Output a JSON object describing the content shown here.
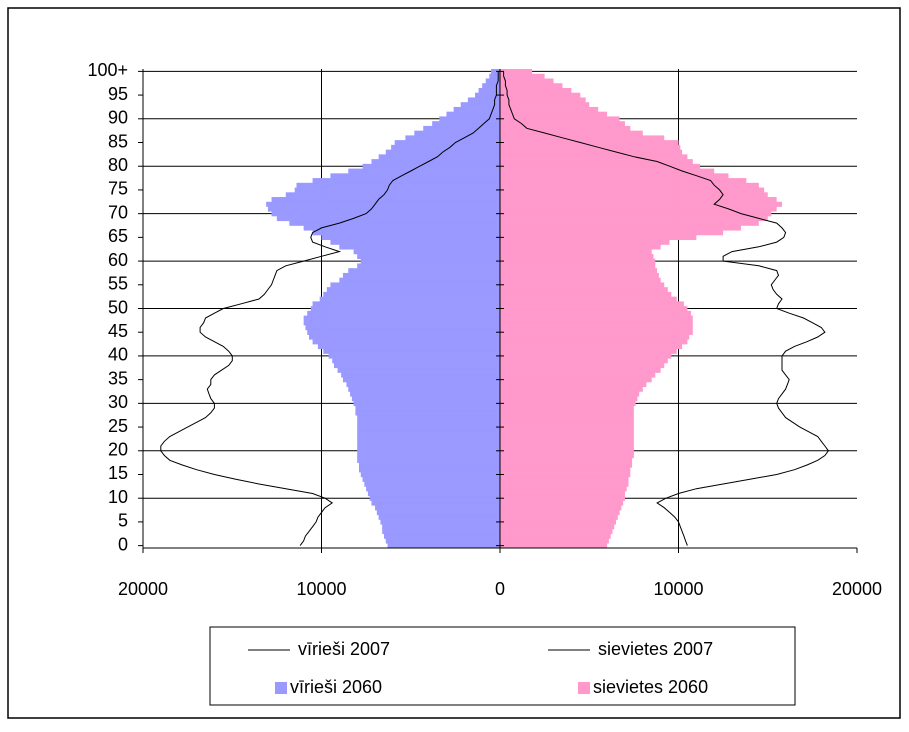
{
  "chart_data": {
    "type": "bar",
    "orientation": "horizontal",
    "categories": [
      "0",
      null,
      null,
      null,
      null,
      "5",
      null,
      null,
      null,
      null,
      "10",
      null,
      null,
      null,
      null,
      "15",
      null,
      null,
      null,
      null,
      "20",
      null,
      null,
      null,
      null,
      "25",
      null,
      null,
      null,
      null,
      "30",
      null,
      null,
      null,
      null,
      "35",
      null,
      null,
      null,
      null,
      "40",
      null,
      null,
      null,
      null,
      "45",
      null,
      null,
      null,
      null,
      "50",
      null,
      null,
      null,
      null,
      "55",
      null,
      null,
      null,
      null,
      "60",
      null,
      null,
      null,
      null,
      "65",
      null,
      null,
      null,
      null,
      "70",
      null,
      null,
      null,
      null,
      "75",
      null,
      null,
      null,
      null,
      "80",
      null,
      null,
      null,
      null,
      "85",
      null,
      null,
      null,
      null,
      "90",
      null,
      null,
      null,
      null,
      "95",
      null,
      null,
      null,
      null,
      "100+"
    ],
    "xlim": [
      -20000,
      20000
    ],
    "xticks": [
      {
        "value": -20000,
        "label": "20000"
      },
      {
        "value": -10000,
        "label": "10000"
      },
      0,
      10000,
      20000
    ],
    "grid": true,
    "series": [
      {
        "name": "vīrieši 2007",
        "type": "line",
        "color": "#000000",
        "values": [
          -11200,
          -11000,
          -10900,
          -10700,
          -10500,
          -10300,
          -10200,
          -10000,
          -9800,
          -9400,
          -9800,
          -10500,
          -12000,
          -13500,
          -14800,
          -16000,
          -17000,
          -17800,
          -18500,
          -18800,
          -19000,
          -19000,
          -18800,
          -18500,
          -18000,
          -17500,
          -17000,
          -16500,
          -16200,
          -16000,
          -16000,
          -16200,
          -16300,
          -16400,
          -16200,
          -16200,
          -16000,
          -15600,
          -15200,
          -15000,
          -15000,
          -15200,
          -15500,
          -16000,
          -16500,
          -16800,
          -16800,
          -16600,
          -16500,
          -16000,
          -15500,
          -14500,
          -13500,
          -13200,
          -13000,
          -12800,
          -12700,
          -12600,
          -12500,
          -12000,
          -11000,
          -10000,
          -9000,
          -9800,
          -10500,
          -10600,
          -10500,
          -10000,
          -9000,
          -8200,
          -7500,
          -7200,
          -7000,
          -6800,
          -6500,
          -6300,
          -6200,
          -6000,
          -5500,
          -5000,
          -4500,
          -4000,
          -3500,
          -3200,
          -2800,
          -2500,
          -2000,
          -1500,
          -1200,
          -900,
          -600,
          -500,
          -400,
          -300,
          -300,
          -200,
          -200,
          -200,
          -100,
          -100,
          -100
        ]
      },
      {
        "name": "sievietes 2007",
        "type": "line",
        "color": "#000000",
        "values": [
          10500,
          10400,
          10300,
          10200,
          10100,
          10000,
          9800,
          9500,
          9200,
          8800,
          9300,
          10000,
          11000,
          12500,
          14000,
          15500,
          16500,
          17200,
          17800,
          18200,
          18400,
          18200,
          18000,
          17800,
          17300,
          16800,
          16400,
          16000,
          15800,
          15600,
          15500,
          15600,
          15800,
          16000,
          16100,
          16200,
          16000,
          15800,
          15800,
          15800,
          15800,
          16000,
          16500,
          17200,
          17800,
          18200,
          18000,
          17500,
          17000,
          16200,
          15500,
          15600,
          15800,
          15500,
          15300,
          15200,
          15400,
          15600,
          15500,
          14500,
          12500,
          12500,
          13000,
          14500,
          15500,
          15900,
          16000,
          15800,
          15500,
          14500,
          13500,
          12800,
          12000,
          12300,
          12500,
          12300,
          12000,
          11800,
          11000,
          10200,
          9500,
          8800,
          7500,
          6500,
          5500,
          4500,
          3500,
          2500,
          1500,
          1200,
          800,
          700,
          600,
          500,
          500,
          400,
          400,
          300,
          300,
          200,
          200
        ]
      },
      {
        "name": "vīrieši 2060",
        "type": "bar",
        "color": "#9999ff",
        "values": [
          -6300,
          -6400,
          -6500,
          -6600,
          -6600,
          -6700,
          -6800,
          -6900,
          -7000,
          -7200,
          -7300,
          -7400,
          -7500,
          -7600,
          -7700,
          -7800,
          -7900,
          -7900,
          -8000,
          -8000,
          -8000,
          -8000,
          -8000,
          -8000,
          -8000,
          -8000,
          -8000,
          -8000,
          -8100,
          -8100,
          -8200,
          -8300,
          -8400,
          -8500,
          -8600,
          -8800,
          -8900,
          -9100,
          -9300,
          -9400,
          -9600,
          -9900,
          -10200,
          -10500,
          -10700,
          -10800,
          -10900,
          -11000,
          -11000,
          -10800,
          -10600,
          -10500,
          -10100,
          -9900,
          -9700,
          -9500,
          -9000,
          -8800,
          -8500,
          -8000,
          -7800,
          -8000,
          -8200,
          -9000,
          -9500,
          -10000,
          -10500,
          -11000,
          -11800,
          -12500,
          -12800,
          -13000,
          -13100,
          -12800,
          -12000,
          -11500,
          -11400,
          -10500,
          -9500,
          -8500,
          -7700,
          -7200,
          -6800,
          -6400,
          -6100,
          -5900,
          -5300,
          -4800,
          -4300,
          -3800,
          -3400,
          -3000,
          -2600,
          -2200,
          -1800,
          -1400,
          -1200,
          -1000,
          -800,
          -600,
          -500
        ]
      },
      {
        "name": "sievietes 2060",
        "type": "bar",
        "color": "#ff99cc",
        "values": [
          6000,
          6100,
          6200,
          6300,
          6400,
          6500,
          6600,
          6700,
          6800,
          6900,
          7000,
          7000,
          7100,
          7200,
          7200,
          7300,
          7300,
          7400,
          7400,
          7500,
          7500,
          7500,
          7500,
          7500,
          7500,
          7500,
          7500,
          7500,
          7500,
          7500,
          7600,
          7700,
          7800,
          8000,
          8200,
          8500,
          8700,
          9000,
          9200,
          9400,
          9600,
          9900,
          10200,
          10500,
          10600,
          10800,
          10800,
          10800,
          10800,
          10700,
          10500,
          10300,
          9900,
          9600,
          9400,
          9200,
          9000,
          8900,
          8800,
          8700,
          8700,
          8600,
          8500,
          9000,
          9500,
          11000,
          12500,
          13500,
          14500,
          15000,
          15200,
          15500,
          15800,
          15500,
          15000,
          14800,
          14500,
          13800,
          12800,
          12000,
          11200,
          10800,
          10500,
          10200,
          10100,
          10000,
          9200,
          8000,
          7300,
          7000,
          6700,
          6000,
          5500,
          5000,
          4800,
          4500,
          4000,
          3500,
          3000,
          2500,
          1800
        ]
      }
    ]
  }
}
